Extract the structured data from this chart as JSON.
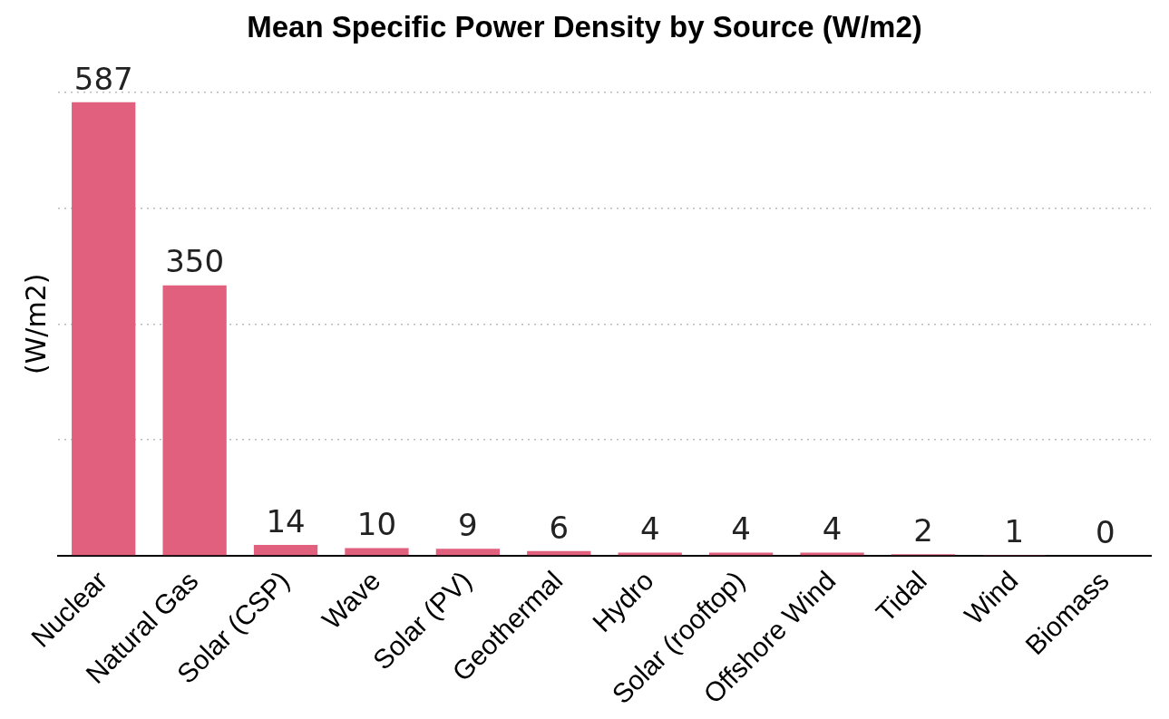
{
  "chart_data": {
    "type": "bar",
    "title": "Mean Specific Power Density by Source (W/m2)",
    "ylabel": "(W/m2)",
    "categories": [
      "Nuclear",
      "Natural Gas",
      "Solar (CSP)",
      "Wave",
      "Solar (PV)",
      "Geothermal",
      "Hydro",
      "Solar (rooftop)",
      "Offshore Wind",
      "Tidal",
      "Wind",
      "Biomass"
    ],
    "values": [
      587,
      350,
      14,
      10,
      9,
      6,
      4,
      4,
      4,
      2,
      1,
      0
    ],
    "color": "#e0607e",
    "ylim": [
      0,
      600
    ],
    "yticks": [
      0,
      {
        "value": 150,
        "label": null
      },
      {
        "value": 300,
        "label": null
      },
      {
        "value": 450,
        "label": null
      },
      {
        "value": 600,
        "label": null
      }
    ],
    "tick_labels": "x",
    "grid": "y",
    "data_labels": true
  }
}
